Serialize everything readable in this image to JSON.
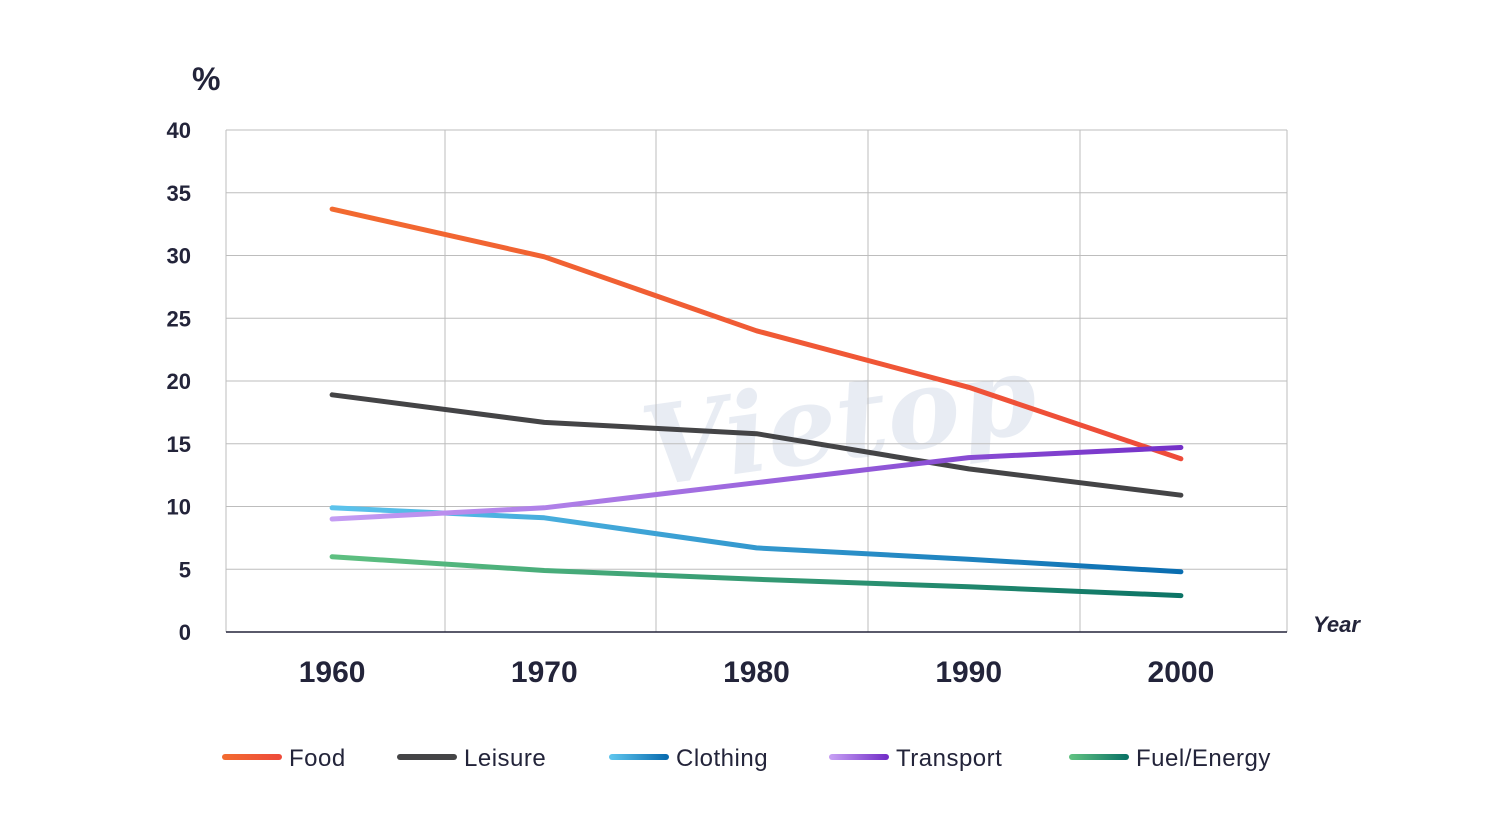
{
  "chart_data": {
    "type": "line",
    "title": "",
    "xlabel": "Year",
    "ylabel": "%",
    "watermark": "Vietop",
    "x": [
      1960,
      1970,
      1980,
      1990,
      2000
    ],
    "x_ticks": [
      "1960",
      "1970",
      "1980",
      "1990",
      "2000"
    ],
    "y_ticks": [
      "0",
      "5",
      "10",
      "15",
      "20",
      "25",
      "30",
      "35",
      "40"
    ],
    "ylim": [
      0,
      40
    ],
    "xlim": [
      1955,
      2005
    ],
    "grid": true,
    "legend_position": "bottom",
    "series": [
      {
        "name": "Food",
        "color": "#f26a30",
        "color_end": "#ee4b3a",
        "values": [
          33.7,
          29.9,
          24.0,
          19.5,
          13.8
        ]
      },
      {
        "name": "Leisure",
        "color": "#444446",
        "color_end": "#444446",
        "values": [
          18.9,
          16.7,
          15.8,
          13.0,
          10.9
        ]
      },
      {
        "name": "Clothing",
        "color": "#5cc3ec",
        "color_end": "#0a6db0",
        "values": [
          9.9,
          9.1,
          6.7,
          5.8,
          4.8
        ]
      },
      {
        "name": "Transport",
        "color": "#c49cf3",
        "color_end": "#7430c8",
        "values": [
          9.0,
          9.9,
          11.9,
          13.9,
          14.7
        ]
      },
      {
        "name": "Fuel/Energy",
        "color": "#5ec081",
        "color_end": "#0c7466",
        "values": [
          6.0,
          4.9,
          4.2,
          3.6,
          2.9
        ]
      }
    ]
  }
}
